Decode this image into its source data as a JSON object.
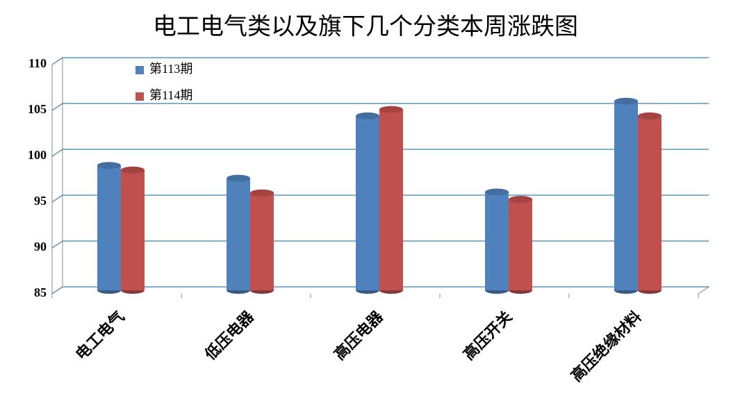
{
  "chart_data": {
    "type": "bar",
    "title": "电工电气类以及旗下几个分类本周涨跌图",
    "categories": [
      "电工电气",
      "低压电器",
      "高压电器",
      "高压开关",
      "高压绝缘材料"
    ],
    "series": [
      {
        "name": "第113期",
        "color": "#4f81bd",
        "values": [
          99.0,
          97.6,
          104.4,
          96.1,
          106.0
        ]
      },
      {
        "name": "第114期",
        "color": "#c0504d",
        "values": [
          98.5,
          96.0,
          105.1,
          95.3,
          104.4
        ]
      }
    ],
    "ylim": [
      85,
      110
    ],
    "yticks": [
      85,
      90,
      95,
      100,
      105,
      110
    ],
    "grid": true,
    "legend": "upper left"
  }
}
